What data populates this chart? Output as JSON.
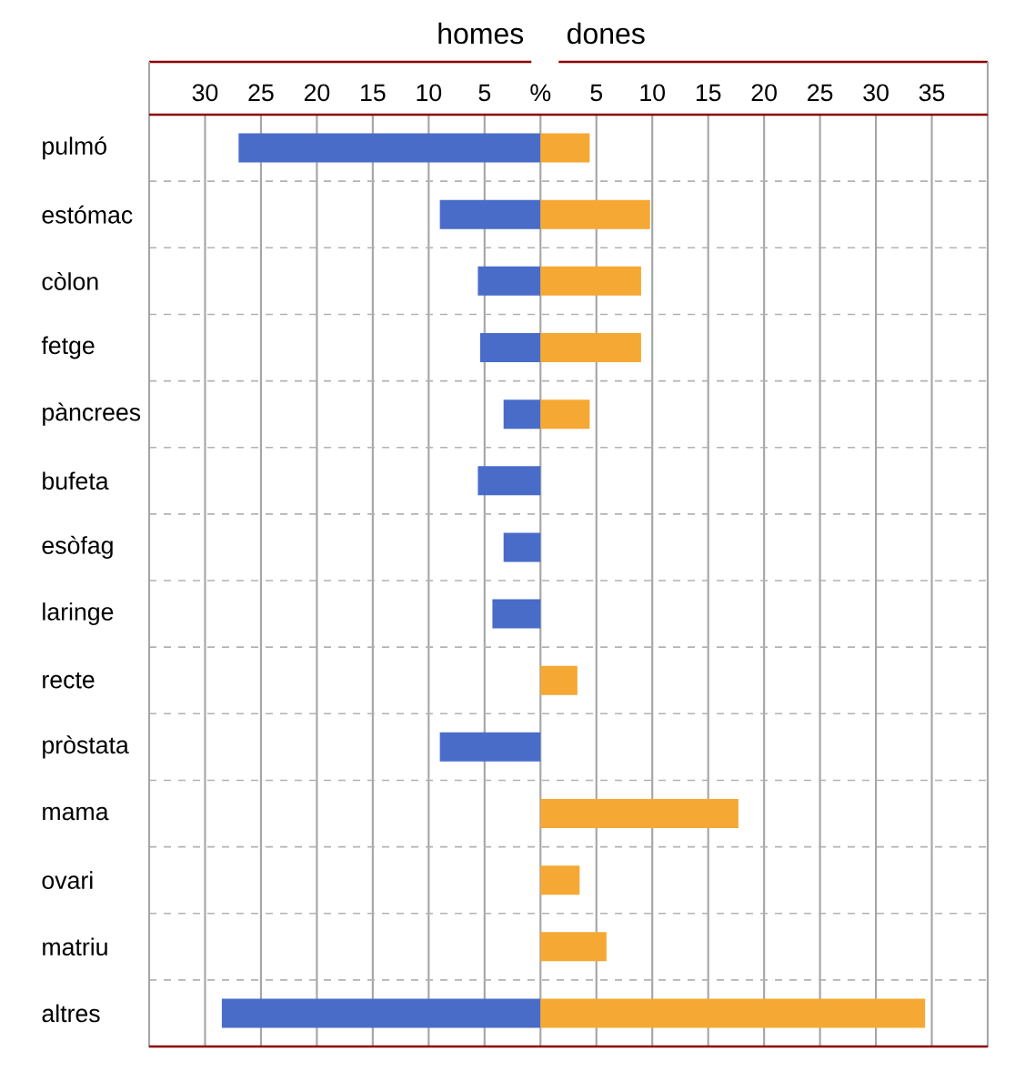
{
  "chart_data": {
    "type": "bar",
    "orientation": "horizontal",
    "grid": true,
    "categories": [
      "pulmó",
      "estómac",
      "còlon",
      "fetge",
      "pàncrees",
      "bufeta",
      "esòfag",
      "laringe",
      "recte",
      "pròstata",
      "mama",
      "ovari",
      "matriu",
      "altres"
    ],
    "annotations": [
      "homes",
      "dones"
    ],
    "series": [
      {
        "color": "#4a6cc9",
        "values": [
          -27,
          -9,
          -5.6,
          -5.4,
          -3.3,
          -5.6,
          -3.3,
          -4.3,
          null,
          -9,
          null,
          null,
          null,
          -28.5
        ]
      },
      {
        "color": "#f5a833",
        "values": [
          4.4,
          9.8,
          9,
          9,
          4.4,
          null,
          null,
          null,
          3.3,
          null,
          17.7,
          3.5,
          5.9,
          34.4
        ]
      }
    ],
    "xlim": [
      -35,
      40
    ],
    "xticks": [
      {
        "value": -30,
        "label": "30"
      },
      {
        "value": -25,
        "label": "25"
      },
      {
        "value": -20,
        "label": "20"
      },
      {
        "value": -15,
        "label": "15"
      },
      {
        "value": -10,
        "label": "10"
      },
      {
        "value": -5,
        "label": "5"
      },
      {
        "value": 0,
        "label": "%"
      },
      5,
      10,
      15,
      20,
      25,
      30,
      35
    ]
  }
}
